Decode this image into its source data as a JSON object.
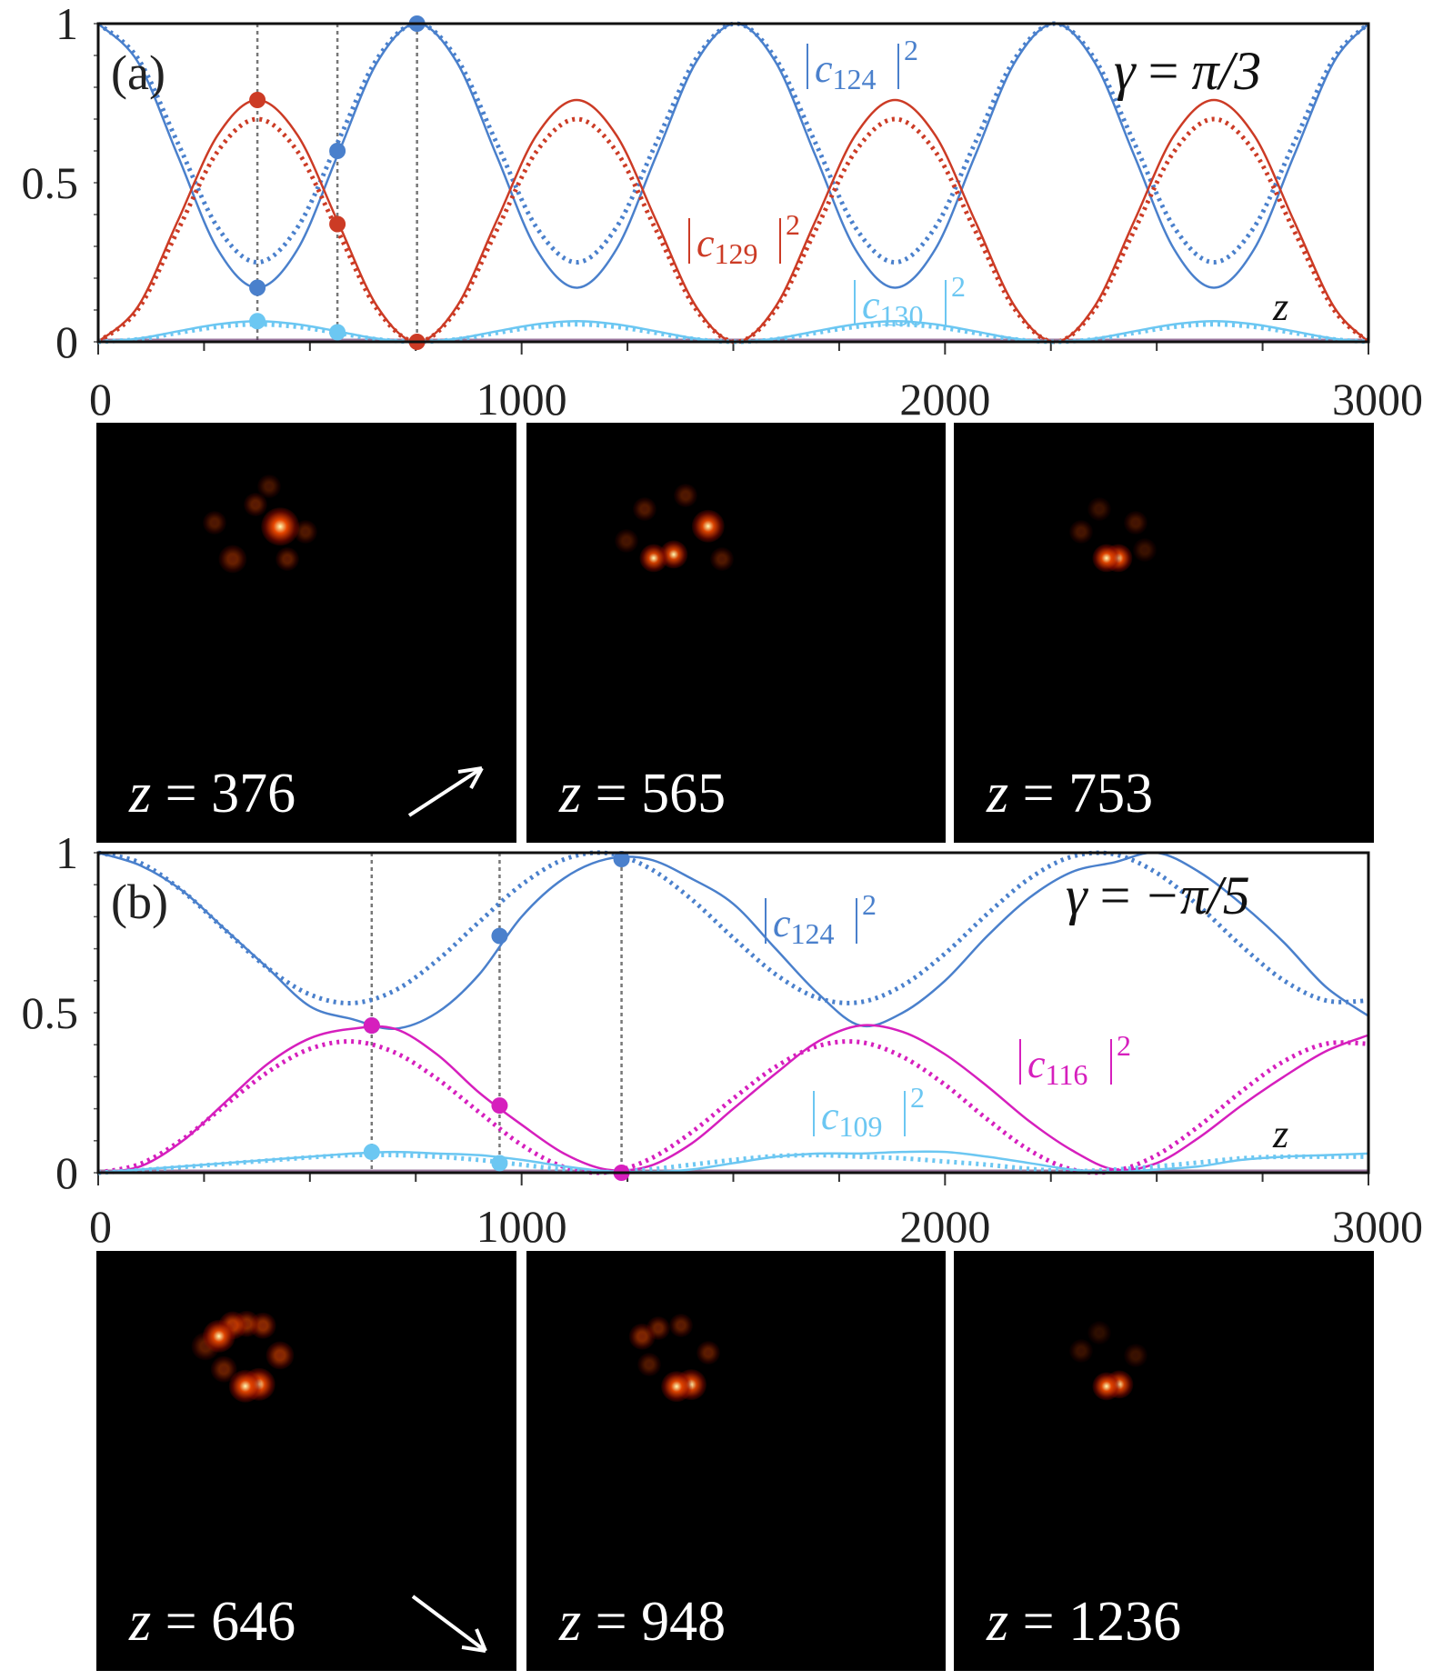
{
  "chart_data": [
    {
      "type": "line",
      "panel_label": "(a)",
      "parameter": {
        "symbol": "γ",
        "eq": "=",
        "value": "π/3"
      },
      "xlabel": "z",
      "ylabel": "",
      "xlim": [
        0,
        3000
      ],
      "ylim": [
        0,
        1
      ],
      "xticks": [
        "0",
        "1000",
        "2000",
        "3000"
      ],
      "yticks": [
        "0",
        "0.5",
        "1"
      ],
      "x": [
        0,
        94,
        188,
        282,
        376,
        471,
        565,
        659,
        753,
        847,
        941,
        1035,
        1130,
        1224,
        1318,
        1412,
        1506,
        1600,
        1694,
        1788,
        1882,
        1977,
        2071,
        2165,
        2259,
        2353,
        2447,
        2541,
        2635,
        2730,
        2824,
        2918,
        3000
      ],
      "series": [
        {
          "name": "|c124|^2",
          "style": "solid",
          "color": "#4a80cc",
          "values": [
            1,
            0.879,
            0.585,
            0.291,
            0.17,
            0.291,
            0.585,
            0.879,
            1,
            0.879,
            0.585,
            0.291,
            0.17,
            0.291,
            0.585,
            0.879,
            1,
            0.879,
            0.585,
            0.291,
            0.17,
            0.291,
            0.585,
            0.879,
            1,
            0.879,
            0.585,
            0.291,
            0.17,
            0.291,
            0.585,
            0.879,
            1
          ]
        },
        {
          "name": "|c124|^2",
          "style": "dotted",
          "color": "#4a80cc",
          "values": [
            1,
            0.89,
            0.625,
            0.36,
            0.25,
            0.36,
            0.625,
            0.89,
            1,
            0.89,
            0.625,
            0.36,
            0.25,
            0.36,
            0.625,
            0.89,
            1,
            0.89,
            0.625,
            0.36,
            0.25,
            0.36,
            0.625,
            0.89,
            1,
            0.89,
            0.625,
            0.36,
            0.25,
            0.36,
            0.625,
            0.89,
            1
          ]
        },
        {
          "name": "|c129|^2",
          "style": "solid",
          "color": "#cc3b25",
          "values": [
            0,
            0.111,
            0.38,
            0.649,
            0.76,
            0.649,
            0.38,
            0.111,
            0,
            0.111,
            0.38,
            0.649,
            0.76,
            0.649,
            0.38,
            0.111,
            0,
            0.111,
            0.38,
            0.649,
            0.76,
            0.649,
            0.38,
            0.111,
            0,
            0.111,
            0.38,
            0.649,
            0.76,
            0.649,
            0.38,
            0.111,
            0
          ]
        },
        {
          "name": "|c129|^2",
          "style": "dotted",
          "color": "#cc3b25",
          "values": [
            0,
            0.102,
            0.35,
            0.598,
            0.7,
            0.598,
            0.35,
            0.102,
            0,
            0.102,
            0.35,
            0.598,
            0.7,
            0.598,
            0.35,
            0.102,
            0,
            0.102,
            0.35,
            0.598,
            0.7,
            0.598,
            0.35,
            0.102,
            0,
            0.102,
            0.35,
            0.598,
            0.7,
            0.598,
            0.35,
            0.102,
            0
          ]
        },
        {
          "name": "|c130|^2",
          "style": "solid",
          "color": "#6cc7f2",
          "values": [
            0,
            0.01,
            0.033,
            0.055,
            0.065,
            0.055,
            0.033,
            0.01,
            0,
            0.01,
            0.033,
            0.055,
            0.065,
            0.055,
            0.033,
            0.01,
            0,
            0.01,
            0.033,
            0.055,
            0.065,
            0.055,
            0.033,
            0.01,
            0,
            0.01,
            0.033,
            0.055,
            0.065,
            0.055,
            0.033,
            0.01,
            0
          ]
        },
        {
          "name": "|c130|^2",
          "style": "dotted",
          "color": "#6cc7f2",
          "values": [
            0,
            0.008,
            0.028,
            0.047,
            0.055,
            0.047,
            0.028,
            0.008,
            0,
            0.008,
            0.028,
            0.047,
            0.055,
            0.047,
            0.028,
            0.008,
            0,
            0.008,
            0.028,
            0.047,
            0.055,
            0.047,
            0.028,
            0.008,
            0,
            0.008,
            0.028,
            0.047,
            0.055,
            0.047,
            0.028,
            0.008,
            0
          ]
        }
      ],
      "labels": [
        {
          "name": "c",
          "index": "124",
          "power": "2",
          "color": "#4a80cc"
        },
        {
          "name": "c",
          "index": "129",
          "power": "2",
          "color": "#cc3b25"
        },
        {
          "name": "c",
          "index": "130",
          "power": "2",
          "color": "#6cc7f2"
        }
      ],
      "markers_z": [
        376,
        565,
        753
      ],
      "markers": [
        {
          "z": 376,
          "value": 0.17,
          "color": "#4a80cc"
        },
        {
          "z": 376,
          "value": 0.76,
          "color": "#cc3b25"
        },
        {
          "z": 376,
          "value": 0.065,
          "color": "#6cc7f2"
        },
        {
          "z": 565,
          "value": 0.6,
          "color": "#4a80cc"
        },
        {
          "z": 565,
          "value": 0.37,
          "color": "#cc3b25"
        },
        {
          "z": 565,
          "value": 0.03,
          "color": "#6cc7f2"
        },
        {
          "z": 753,
          "value": 1.0,
          "color": "#4a80cc"
        },
        {
          "z": 753,
          "value": 0.0,
          "color": "#cc3b25"
        }
      ]
    },
    {
      "type": "line",
      "panel_label": "(b)",
      "parameter": {
        "symbol": "γ",
        "eq": "=",
        "value": "−π/5"
      },
      "xlabel": "z",
      "ylabel": "",
      "xlim": [
        0,
        3000
      ],
      "ylim": [
        0,
        1
      ],
      "xticks": [
        "0",
        "1000",
        "2000",
        "3000"
      ],
      "yticks": [
        "0",
        "0.5",
        "1"
      ],
      "x": [
        0,
        100,
        200,
        300,
        400,
        500,
        600,
        700,
        800,
        900,
        1000,
        1100,
        1200,
        1300,
        1400,
        1500,
        1600,
        1700,
        1800,
        1900,
        2000,
        2100,
        2200,
        2300,
        2400,
        2500,
        2600,
        2700,
        2800,
        2900,
        3000
      ],
      "series": [
        {
          "name": "|c124|^2",
          "style": "solid",
          "color": "#4a80cc",
          "values": [
            1,
            0.96,
            0.88,
            0.76,
            0.64,
            0.52,
            0.48,
            0.45,
            0.5,
            0.62,
            0.8,
            0.92,
            0.98,
            0.98,
            0.92,
            0.84,
            0.7,
            0.56,
            0.46,
            0.5,
            0.6,
            0.74,
            0.86,
            0.94,
            0.97,
            1,
            0.94,
            0.84,
            0.72,
            0.58,
            0.49
          ]
        },
        {
          "name": "|c124|^2",
          "style": "dotted",
          "color": "#4a80cc",
          "values": [
            1,
            0.968,
            0.879,
            0.758,
            0.64,
            0.557,
            0.53,
            0.569,
            0.663,
            0.784,
            0.9,
            0.979,
            0.999,
            0.953,
            0.856,
            0.734,
            0.62,
            0.546,
            0.533,
            0.585,
            0.685,
            0.809,
            0.92,
            0.988,
            0.995,
            0.937,
            0.833,
            0.709,
            0.601,
            0.538,
            0.538
          ]
        },
        {
          "name": "|c116|^2",
          "style": "solid",
          "color": "#d61fbd",
          "values": [
            0,
            0.02,
            0.1,
            0.22,
            0.34,
            0.42,
            0.45,
            0.45,
            0.37,
            0.25,
            0.15,
            0.06,
            0.01,
            0.02,
            0.09,
            0.2,
            0.31,
            0.41,
            0.46,
            0.44,
            0.37,
            0.27,
            0.16,
            0.07,
            0.01,
            0.03,
            0.11,
            0.21,
            0.3,
            0.38,
            0.43
          ]
        },
        {
          "name": "|c116|^2",
          "style": "dotted",
          "color": "#d61fbd",
          "values": [
            0,
            0.028,
            0.105,
            0.211,
            0.314,
            0.387,
            0.41,
            0.376,
            0.294,
            0.189,
            0.087,
            0.018,
            0.001,
            0.041,
            0.125,
            0.232,
            0.331,
            0.396,
            0.408,
            0.362,
            0.275,
            0.167,
            0.07,
            0.01,
            0.005,
            0.055,
            0.146,
            0.254,
            0.348,
            0.403,
            0.403
          ]
        },
        {
          "name": "|c109|^2",
          "style": "solid",
          "color": "#6cc7f2",
          "values": [
            0,
            0.01,
            0.02,
            0.03,
            0.04,
            0.05,
            0.06,
            0.065,
            0.06,
            0.055,
            0.04,
            0.02,
            0.005,
            0.002,
            0.01,
            0.03,
            0.05,
            0.06,
            0.06,
            0.065,
            0.065,
            0.05,
            0.03,
            0.01,
            0.002,
            0.01,
            0.02,
            0.04,
            0.05,
            0.055,
            0.06
          ]
        },
        {
          "name": "|c109|^2",
          "style": "dotted",
          "color": "#6cc7f2",
          "values": [
            0,
            0.008,
            0.018,
            0.028,
            0.038,
            0.048,
            0.055,
            0.055,
            0.05,
            0.04,
            0.025,
            0.01,
            0.002,
            0.01,
            0.025,
            0.04,
            0.052,
            0.055,
            0.05,
            0.045,
            0.035,
            0.025,
            0.012,
            0.005,
            0.01,
            0.02,
            0.032,
            0.045,
            0.05,
            0.05,
            0.05
          ]
        }
      ],
      "labels": [
        {
          "name": "c",
          "index": "124",
          "power": "2",
          "color": "#4a80cc"
        },
        {
          "name": "c",
          "index": "116",
          "power": "2",
          "color": "#d61fbd"
        },
        {
          "name": "c",
          "index": "109",
          "power": "2",
          "color": "#6cc7f2"
        }
      ],
      "markers_z": [
        646,
        948,
        1236
      ],
      "markers": [
        {
          "z": 646,
          "value": 0.46,
          "color": "#4a80cc"
        },
        {
          "z": 646,
          "value": 0.46,
          "color": "#d61fbd"
        },
        {
          "z": 646,
          "value": 0.065,
          "color": "#6cc7f2"
        },
        {
          "z": 948,
          "value": 0.74,
          "color": "#4a80cc"
        },
        {
          "z": 948,
          "value": 0.21,
          "color": "#d61fbd"
        },
        {
          "z": 948,
          "value": 0.03,
          "color": "#6cc7f2"
        },
        {
          "z": 1236,
          "value": 0.98,
          "color": "#4a80cc"
        },
        {
          "z": 1236,
          "value": 0.0,
          "color": "#d61fbd"
        }
      ]
    }
  ],
  "snapshots": {
    "a": [
      {
        "var": "z",
        "eq": "=",
        "value": "376"
      },
      {
        "var": "z",
        "eq": "=",
        "value": "565"
      },
      {
        "var": "z",
        "eq": "=",
        "value": "753"
      }
    ],
    "b": [
      {
        "var": "z",
        "eq": "=",
        "value": "646"
      },
      {
        "var": "z",
        "eq": "=",
        "value": "948"
      },
      {
        "var": "z",
        "eq": "=",
        "value": "1236"
      }
    ],
    "arrow_a": "arrow-up-right-icon",
    "arrow_b": "arrow-down-right-icon"
  }
}
